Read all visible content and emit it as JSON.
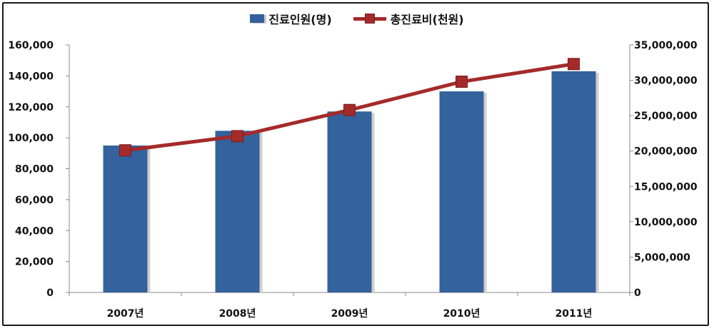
{
  "chart_data": {
    "type": "bar",
    "categories": [
      "2007년",
      "2008년",
      "2009년",
      "2010년",
      "2011년"
    ],
    "series": [
      {
        "name": "진료인원(명)",
        "type": "bar",
        "axis": "left",
        "color": "#33629c",
        "values": [
          95000,
          104500,
          117000,
          130000,
          143000
        ]
      },
      {
        "name": "총진료비(천원)",
        "type": "line",
        "axis": "right",
        "color": "#a52a2a",
        "values": [
          20100000,
          22100000,
          25800000,
          29800000,
          32300000
        ]
      }
    ],
    "y_left": {
      "range": [
        0,
        160000
      ],
      "ticks": [
        "0",
        "20,000",
        "40,000",
        "60,000",
        "80,000",
        "100,000",
        "120,000",
        "140,000",
        "160,000"
      ]
    },
    "y_right": {
      "range": [
        0,
        35000000
      ],
      "ticks": [
        "0",
        "5,000,000",
        "10,000,000",
        "15,000,000",
        "20,000,000",
        "25,000,000",
        "30,000,000",
        "35,000,000"
      ]
    },
    "grid": false,
    "legend_position": "top-center"
  }
}
